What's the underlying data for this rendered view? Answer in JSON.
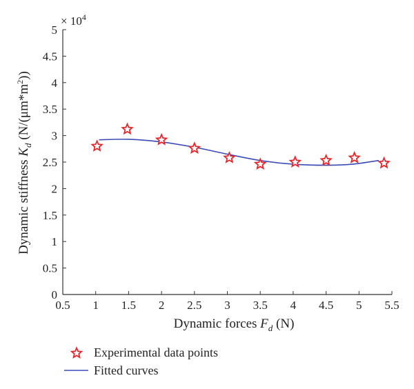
{
  "chart_data": {
    "type": "scatter",
    "title": "",
    "xlabel_prefix": "Dynamic forces ",
    "xlabel_symbol": "F",
    "xlabel_sub": "d",
    "xlabel_suffix": " (N)",
    "ylabel_prefix": "Dynamic stiffness ",
    "ylabel_symbol": "K",
    "ylabel_sub": "d",
    "ylabel_suffix": " (N/(μm*m",
    "ylabel_sup": "2",
    "ylabel_close": "))",
    "y_multiplier": "× 10",
    "y_multiplier_exp": "4",
    "xlim": [
      0.5,
      5.5
    ],
    "ylim": [
      0,
      5
    ],
    "xticks": [
      "0.5",
      "1",
      "1.5",
      "2",
      "2.5",
      "3",
      "3.5",
      "4",
      "4.5",
      "5",
      "5.5"
    ],
    "yticks": [
      "0",
      "0.5",
      "1",
      "1.5",
      "2",
      "2.5",
      "3",
      "3.5",
      "4",
      "4.5",
      "5"
    ],
    "grid": false,
    "legend_position": "bottom-left, below plot",
    "series": [
      {
        "name": "Experimental data points",
        "marker": "star",
        "color": "#e8262a",
        "x": [
          1.02,
          1.48,
          2.0,
          2.5,
          3.03,
          3.5,
          4.03,
          4.5,
          4.93,
          5.38
        ],
        "y": [
          2.8,
          3.12,
          2.92,
          2.76,
          2.58,
          2.46,
          2.5,
          2.53,
          2.58,
          2.48
        ]
      },
      {
        "name": "Fitted curves",
        "type": "line",
        "color": "#3a4ab5",
        "x": [
          1.05,
          1.5,
          2.0,
          2.5,
          3.0,
          3.5,
          4.0,
          4.5,
          4.9,
          5.3
        ],
        "y": [
          2.92,
          2.93,
          2.88,
          2.78,
          2.65,
          2.53,
          2.46,
          2.44,
          2.46,
          2.53
        ]
      }
    ]
  }
}
